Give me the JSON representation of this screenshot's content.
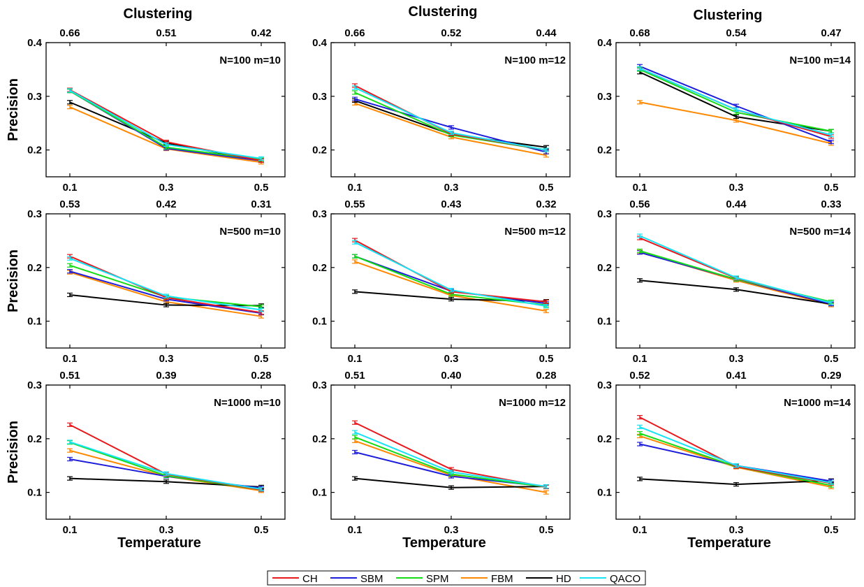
{
  "chart_data": {
    "type": "line",
    "layout": "3x3 grid of line charts with error bars",
    "x_tick_labels": [
      "0.1",
      "0.3",
      "0.5"
    ],
    "x_values": [
      0.1,
      0.3,
      0.5
    ],
    "column_titles": [
      "Clustering",
      "Clustering",
      "Clustering"
    ],
    "row_ylabel": "Precision",
    "xlabel": "Temperature",
    "grid": false,
    "legend": {
      "placement": "bottom-center",
      "entries": [
        {
          "name": "CH",
          "color": "#e8191d"
        },
        {
          "name": "SBM",
          "color": "#1d1ddc"
        },
        {
          "name": "SPM",
          "color": "#16dc16"
        },
        {
          "name": "FBM",
          "color": "#ff8800"
        },
        {
          "name": "HD",
          "color": "#000000"
        },
        {
          "name": "QACO",
          "color": "#16e3f5"
        }
      ]
    },
    "panels": [
      {
        "annotation": "N=100 m=10",
        "top_tick_labels": [
          "0.66",
          "0.51",
          "0.42"
        ],
        "ylim": [
          0.15,
          0.4
        ],
        "y_ticks": [
          "0.2",
          "0.3",
          "0.4"
        ],
        "series": {
          "CH": [
            0.312,
            0.215,
            0.18
          ],
          "SBM": [
            0.31,
            0.203,
            0.18
          ],
          "SPM": [
            0.31,
            0.205,
            0.182
          ],
          "FBM": [
            0.28,
            0.202,
            0.177
          ],
          "HD": [
            0.289,
            0.213,
            0.18
          ],
          "QACO": [
            0.311,
            0.21,
            0.184
          ]
        }
      },
      {
        "annotation": "N=100 m=12",
        "top_tick_labels": [
          "0.66",
          "0.52",
          "0.44"
        ],
        "ylim": [
          0.15,
          0.4
        ],
        "y_ticks": [
          "0.2",
          "0.3",
          "0.4"
        ],
        "series": {
          "CH": [
            0.32,
            0.23,
            0.2
          ],
          "SBM": [
            0.295,
            0.242,
            0.196
          ],
          "SPM": [
            0.307,
            0.228,
            0.2
          ],
          "FBM": [
            0.287,
            0.224,
            0.19
          ],
          "HD": [
            0.292,
            0.229,
            0.205
          ],
          "QACO": [
            0.316,
            0.232,
            0.2
          ]
        }
      },
      {
        "annotation": "N=100 m=14",
        "top_tick_labels": [
          "0.68",
          "0.54",
          "0.47"
        ],
        "ylim": [
          0.15,
          0.4
        ],
        "y_ticks": [
          "0.2",
          "0.3",
          "0.4"
        ],
        "series": {
          "CH": [
            0.352,
            0.275,
            0.225
          ],
          "SBM": [
            0.356,
            0.282,
            0.215
          ],
          "SPM": [
            0.35,
            0.27,
            0.235
          ],
          "FBM": [
            0.289,
            0.255,
            0.212
          ],
          "HD": [
            0.345,
            0.262,
            0.235
          ],
          "QACO": [
            0.352,
            0.275,
            0.228
          ]
        }
      },
      {
        "annotation": "N=500 m=10",
        "top_tick_labels": [
          "0.53",
          "0.42",
          "0.31"
        ],
        "ylim": [
          0.05,
          0.3
        ],
        "y_ticks": [
          "0.1",
          "0.2",
          "0.3"
        ],
        "series": {
          "CH": [
            0.221,
            0.144,
            0.116
          ],
          "SBM": [
            0.193,
            0.141,
            0.115
          ],
          "SPM": [
            0.204,
            0.145,
            0.127
          ],
          "FBM": [
            0.191,
            0.136,
            0.109
          ],
          "HD": [
            0.149,
            0.13,
            0.129
          ],
          "QACO": [
            0.217,
            0.147,
            0.121
          ]
        }
      },
      {
        "annotation": "N=500 m=12",
        "top_tick_labels": [
          "0.55",
          "0.43",
          "0.32"
        ],
        "ylim": [
          0.05,
          0.3
        ],
        "y_ticks": [
          "0.1",
          "0.2",
          "0.3"
        ],
        "series": {
          "CH": [
            0.251,
            0.155,
            0.136
          ],
          "SBM": [
            0.221,
            0.156,
            0.133
          ],
          "SPM": [
            0.221,
            0.15,
            0.13
          ],
          "FBM": [
            0.211,
            0.148,
            0.119
          ],
          "HD": [
            0.155,
            0.141,
            0.137
          ],
          "QACO": [
            0.247,
            0.158,
            0.128
          ]
        }
      },
      {
        "annotation": "N=500 m=14",
        "top_tick_labels": [
          "0.56",
          "0.44",
          "0.33"
        ],
        "ylim": [
          0.05,
          0.3
        ],
        "y_ticks": [
          "0.1",
          "0.2",
          "0.3"
        ],
        "series": {
          "CH": [
            0.255,
            0.18,
            0.134
          ],
          "SBM": [
            0.228,
            0.178,
            0.132
          ],
          "SPM": [
            0.231,
            0.178,
            0.136
          ],
          "FBM": [
            0.229,
            0.176,
            0.13
          ],
          "HD": [
            0.176,
            0.159,
            0.132
          ],
          "QACO": [
            0.259,
            0.181,
            0.134
          ]
        }
      },
      {
        "annotation": "N=1000 m=10",
        "top_tick_labels": [
          "0.51",
          "0.39",
          "0.28"
        ],
        "ylim": [
          0.05,
          0.3
        ],
        "y_ticks": [
          "0.1",
          "0.2",
          "0.3"
        ],
        "series": {
          "CH": [
            0.226,
            0.134,
            0.105
          ],
          "SBM": [
            0.162,
            0.13,
            0.108
          ],
          "SPM": [
            0.193,
            0.131,
            0.105
          ],
          "FBM": [
            0.178,
            0.13,
            0.103
          ],
          "HD": [
            0.126,
            0.12,
            0.11
          ],
          "QACO": [
            0.194,
            0.135,
            0.106
          ]
        }
      },
      {
        "annotation": "N=1000 m=12",
        "top_tick_labels": [
          "0.51",
          "0.40",
          "0.28"
        ],
        "ylim": [
          0.05,
          0.3
        ],
        "y_ticks": [
          "0.1",
          "0.2",
          "0.3"
        ],
        "series": {
          "CH": [
            0.23,
            0.143,
            0.11
          ],
          "SBM": [
            0.175,
            0.13,
            0.111
          ],
          "SPM": [
            0.203,
            0.134,
            0.11
          ],
          "FBM": [
            0.196,
            0.132,
            0.1
          ],
          "HD": [
            0.126,
            0.109,
            0.111
          ],
          "QACO": [
            0.212,
            0.138,
            0.111
          ]
        }
      },
      {
        "annotation": "N=1000 m=14",
        "top_tick_labels": [
          "0.52",
          "0.41",
          "0.29"
        ],
        "ylim": [
          0.05,
          0.3
        ],
        "y_ticks": [
          "0.1",
          "0.2",
          "0.3"
        ],
        "series": {
          "CH": [
            0.24,
            0.148,
            0.117
          ],
          "SBM": [
            0.19,
            0.15,
            0.121
          ],
          "SPM": [
            0.21,
            0.148,
            0.113
          ],
          "FBM": [
            0.205,
            0.147,
            0.11
          ],
          "HD": [
            0.125,
            0.115,
            0.122
          ],
          "QACO": [
            0.222,
            0.15,
            0.118
          ]
        }
      }
    ]
  }
}
